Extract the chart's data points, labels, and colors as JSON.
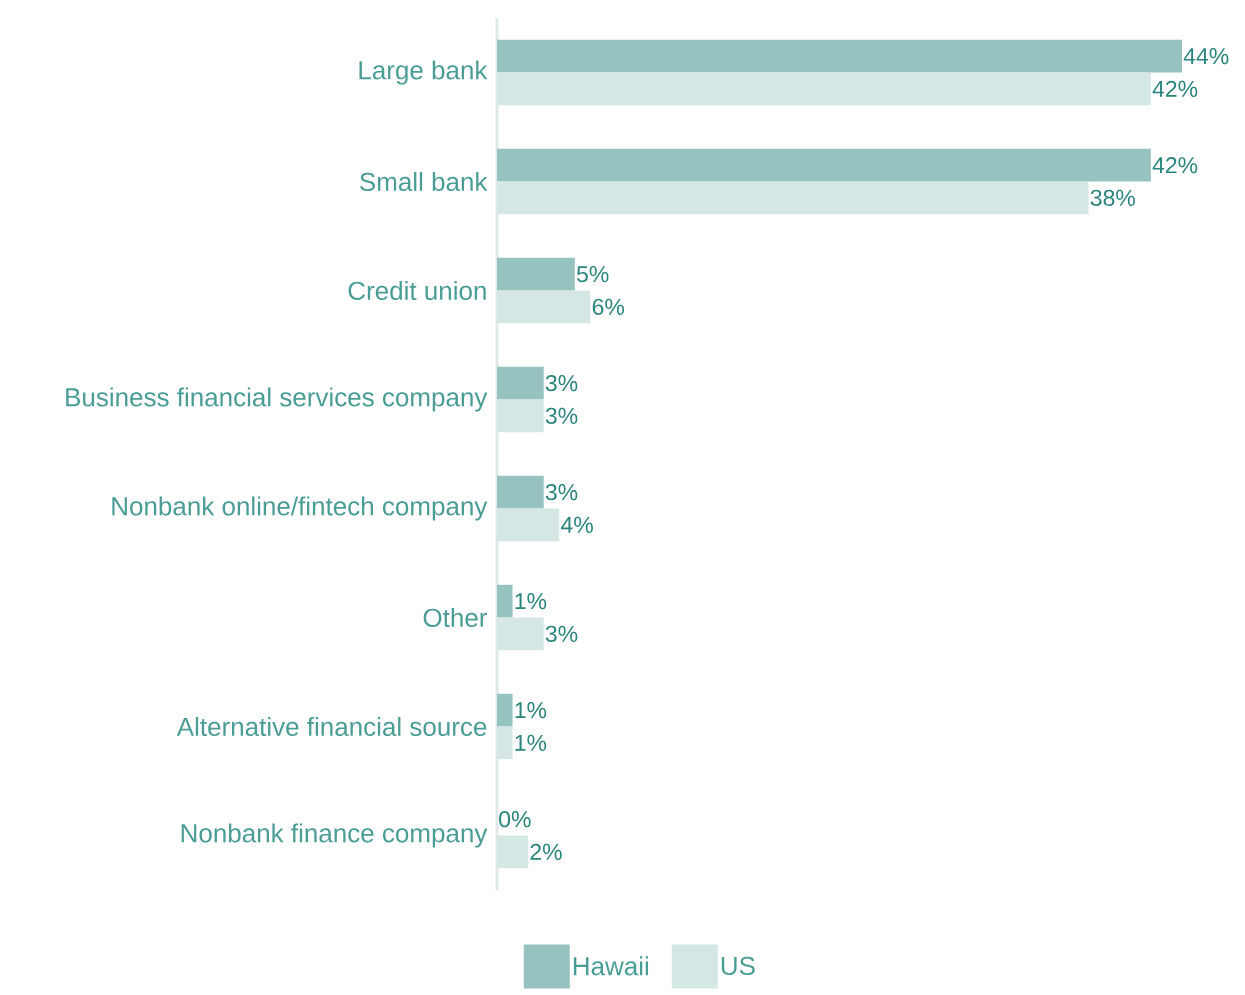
{
  "chart_data": {
    "type": "bar",
    "orientation": "horizontal",
    "categories": [
      "Large bank",
      "Small bank",
      "Credit union",
      "Business financial services company",
      "Nonbank online/fintech company",
      "Other",
      "Alternative financial source",
      "Nonbank finance company"
    ],
    "series": [
      {
        "name": "Hawaii",
        "color": "#96c3bf",
        "values": [
          44,
          42,
          5,
          3,
          3,
          1,
          1,
          0
        ],
        "value_labels": [
          "44%",
          "42%",
          "5%",
          "3%",
          "3%",
          "1%",
          "1%",
          "0%"
        ]
      },
      {
        "name": "US",
        "color": "#d5e7e5",
        "values": [
          42,
          38,
          6,
          3,
          4,
          3,
          1,
          2
        ],
        "value_labels": [
          "42%",
          "38%",
          "6%",
          "3%",
          "4%",
          "3%",
          "1%",
          "2%"
        ]
      }
    ],
    "xlim": [
      0,
      44
    ],
    "legend": "bottom",
    "tick_labels": "y"
  }
}
